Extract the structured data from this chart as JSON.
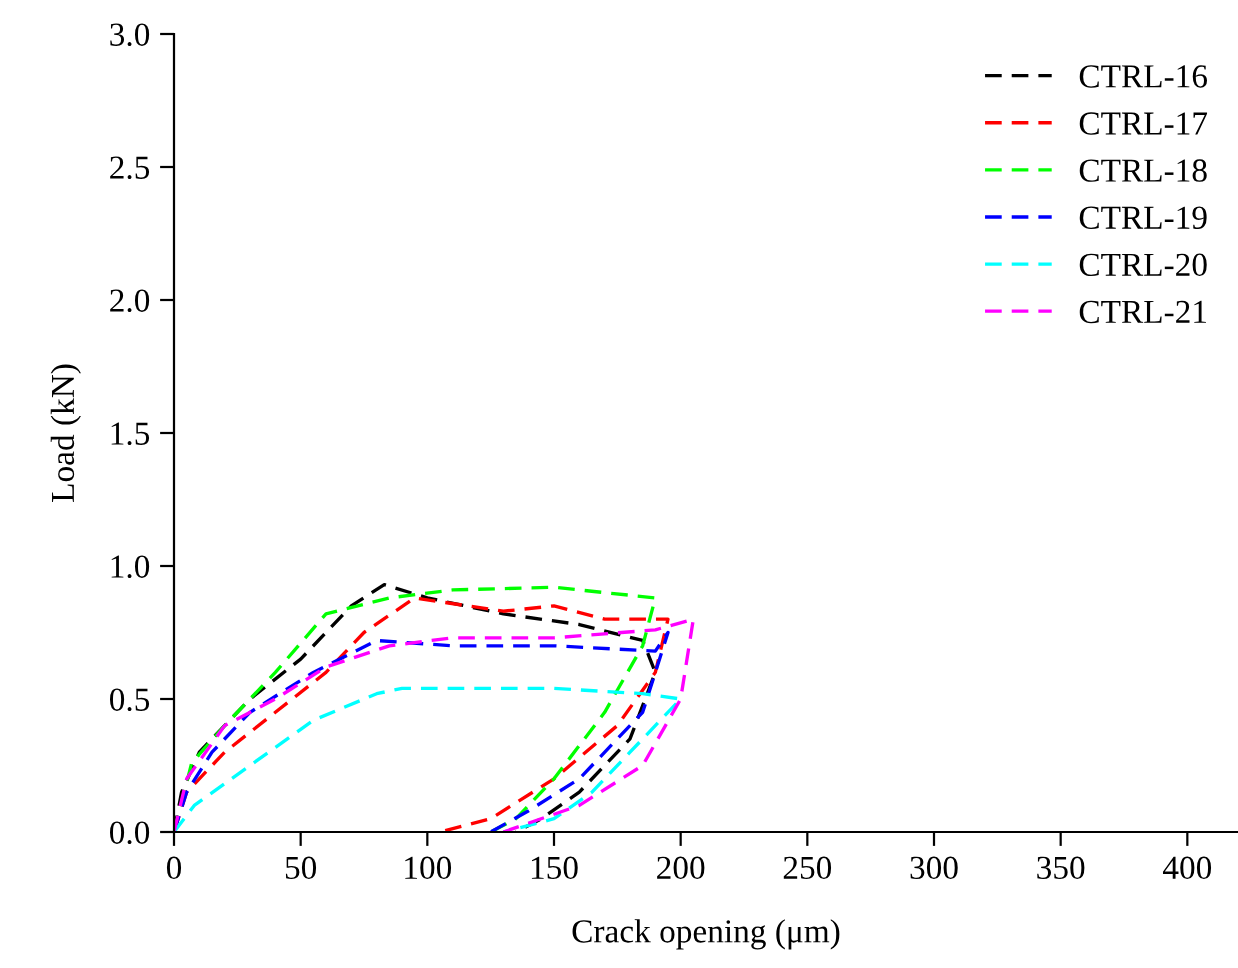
{
  "chart_data": {
    "type": "line",
    "xlabel": "Crack opening (μm)",
    "ylabel": "Load (kN)",
    "xlim": [
      0,
      420
    ],
    "xticks": [
      0,
      50,
      100,
      150,
      200,
      250,
      300,
      350,
      400
    ],
    "ylim": [
      0,
      3.0
    ],
    "yticks": [
      {
        "value": 0,
        "label": "0.0"
      },
      {
        "value": 0.5,
        "label": "0.5"
      },
      {
        "value": 1.0,
        "label": "1.0"
      },
      {
        "value": 1.5,
        "label": "1.5"
      },
      {
        "value": 2.0,
        "label": "2.0"
      },
      {
        "value": 2.5,
        "label": "2.5"
      },
      {
        "value": 3.0,
        "label": "3.0"
      }
    ],
    "grid": false,
    "legend": "top right",
    "line_style": "dashed",
    "marker": "none",
    "series": [
      {
        "name": "CTRL-16",
        "color": "#000000",
        "x": [
          0,
          3,
          10,
          30,
          50,
          70,
          83,
          100,
          130,
          160,
          185,
          190,
          180,
          160,
          145,
          135
        ],
        "values": [
          0,
          0.15,
          0.3,
          0.5,
          0.65,
          0.85,
          0.93,
          0.88,
          0.82,
          0.78,
          0.72,
          0.6,
          0.35,
          0.15,
          0.05,
          0
        ]
      },
      {
        "name": "CTRL-17",
        "color": "#ff0000",
        "x": [
          0,
          5,
          20,
          40,
          60,
          75,
          95,
          130,
          150,
          170,
          195,
          190,
          175,
          150,
          125,
          105
        ],
        "values": [
          0,
          0.15,
          0.3,
          0.45,
          0.6,
          0.75,
          0.88,
          0.83,
          0.85,
          0.8,
          0.8,
          0.6,
          0.4,
          0.2,
          0.05,
          0
        ]
      },
      {
        "name": "CTRL-18",
        "color": "#00ff00",
        "x": [
          0,
          7,
          20,
          40,
          60,
          85,
          110,
          150,
          190,
          185,
          170,
          150,
          135,
          125
        ],
        "values": [
          0,
          0.26,
          0.4,
          0.6,
          0.82,
          0.88,
          0.91,
          0.92,
          0.88,
          0.7,
          0.45,
          0.2,
          0.05,
          0
        ]
      },
      {
        "name": "CTRL-19",
        "color": "#0000ff",
        "x": [
          0,
          5,
          15,
          30,
          55,
          80,
          110,
          150,
          190,
          195,
          185,
          160,
          140,
          125
        ],
        "values": [
          0,
          0.15,
          0.3,
          0.45,
          0.6,
          0.72,
          0.7,
          0.7,
          0.68,
          0.75,
          0.45,
          0.2,
          0.08,
          0
        ]
      },
      {
        "name": "CTRL-20",
        "color": "#00ffff",
        "x": [
          0,
          8,
          30,
          55,
          80,
          90,
          150,
          185,
          200,
          180,
          165,
          150,
          130
        ],
        "values": [
          0,
          0.1,
          0.25,
          0.42,
          0.52,
          0.54,
          0.54,
          0.52,
          0.5,
          0.3,
          0.15,
          0.05,
          0
        ]
      },
      {
        "name": "CTRL-21",
        "color": "#ff00ff",
        "x": [
          0,
          5,
          20,
          40,
          60,
          85,
          110,
          150,
          190,
          205,
          200,
          185,
          160,
          130
        ],
        "values": [
          0,
          0.2,
          0.4,
          0.5,
          0.62,
          0.7,
          0.73,
          0.73,
          0.76,
          0.8,
          0.5,
          0.25,
          0.1,
          0
        ]
      }
    ]
  }
}
